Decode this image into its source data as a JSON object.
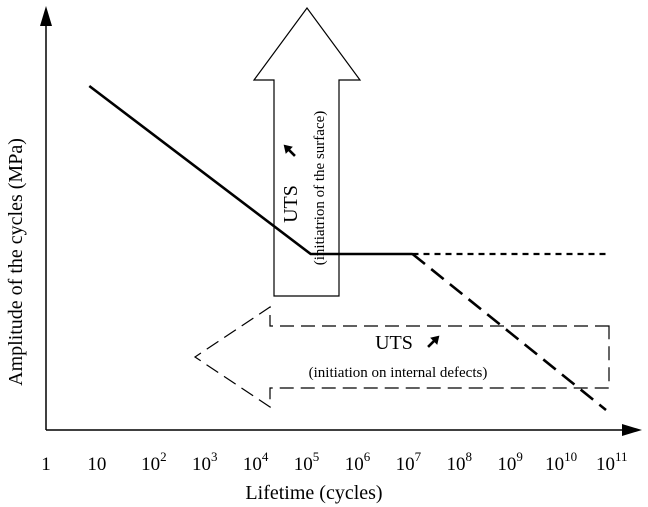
{
  "chart_data": {
    "type": "line",
    "title": "",
    "xlabel": "Lifetime (cycles)",
    "ylabel": "Amplitude of the cycles (MPa)",
    "x_scale": "log",
    "x_ticks": [
      {
        "base": "1",
        "exp": ""
      },
      {
        "base": "10",
        "exp": ""
      },
      {
        "base": "10",
        "exp": "2"
      },
      {
        "base": "10",
        "exp": "3"
      },
      {
        "base": "10",
        "exp": "4"
      },
      {
        "base": "10",
        "exp": "5"
      },
      {
        "base": "10",
        "exp": "6"
      },
      {
        "base": "10",
        "exp": "7"
      },
      {
        "base": "10",
        "exp": "8"
      },
      {
        "base": "10",
        "exp": "9"
      },
      {
        "base": "10",
        "exp": "10"
      },
      {
        "base": "10",
        "exp": "11"
      }
    ],
    "xlim_log10": [
      0,
      11
    ],
    "y_ticks": [],
    "series": [
      {
        "style": "solid",
        "points": [
          [
            0.85,
            0.86
          ],
          [
            5.2,
            0.44
          ],
          [
            7.2,
            0.44
          ]
        ]
      },
      {
        "style": "dotted",
        "points": [
          [
            7.2,
            0.44
          ],
          [
            11.0,
            0.44
          ]
        ]
      },
      {
        "style": "dashed",
        "points": [
          [
            7.2,
            0.44
          ],
          [
            11.0,
            0.05
          ]
        ]
      }
    ],
    "annotations": [
      {
        "id": "surface",
        "direction": "up",
        "line_style": "solid",
        "title": "UTS",
        "subtitle": "(initiatrion of the surface)"
      },
      {
        "id": "internal",
        "direction": "left",
        "line_style": "dashed",
        "title": "UTS",
        "subtitle": "(initiation on internal defects)"
      }
    ]
  }
}
